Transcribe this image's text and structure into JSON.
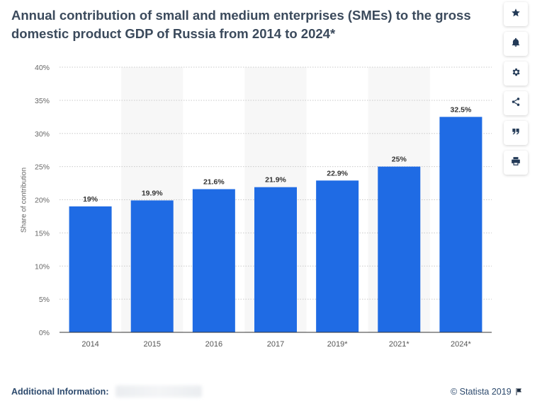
{
  "title": "Annual contribution of small and medium enterprises (SMEs) to the gross domestic product GDP of Russia from 2014 to 2024*",
  "chart_data": {
    "type": "bar",
    "categories": [
      "2014",
      "2015",
      "2016",
      "2017",
      "2019*",
      "2021*",
      "2024*"
    ],
    "values": [
      19,
      19.9,
      21.6,
      21.9,
      22.9,
      25,
      32.5
    ],
    "value_labels": [
      "19%",
      "19.9%",
      "21.6%",
      "21.9%",
      "22.9%",
      "25%",
      "32.5%"
    ],
    "ylabel": "Share of contribution",
    "ylim": [
      0,
      40
    ],
    "yticks": [
      "0%",
      "5%",
      "10%",
      "15%",
      "20%",
      "25%",
      "30%",
      "35%",
      "40%"
    ],
    "grid": true,
    "bar_color": "#1f6be4"
  },
  "toolbar": {
    "icons": [
      "star-icon",
      "bell-icon",
      "gear-icon",
      "share-icon",
      "quote-icon",
      "print-icon"
    ]
  },
  "footer": {
    "additional_info_label": "Additional Information:",
    "copyright": "© Statista 2019"
  }
}
